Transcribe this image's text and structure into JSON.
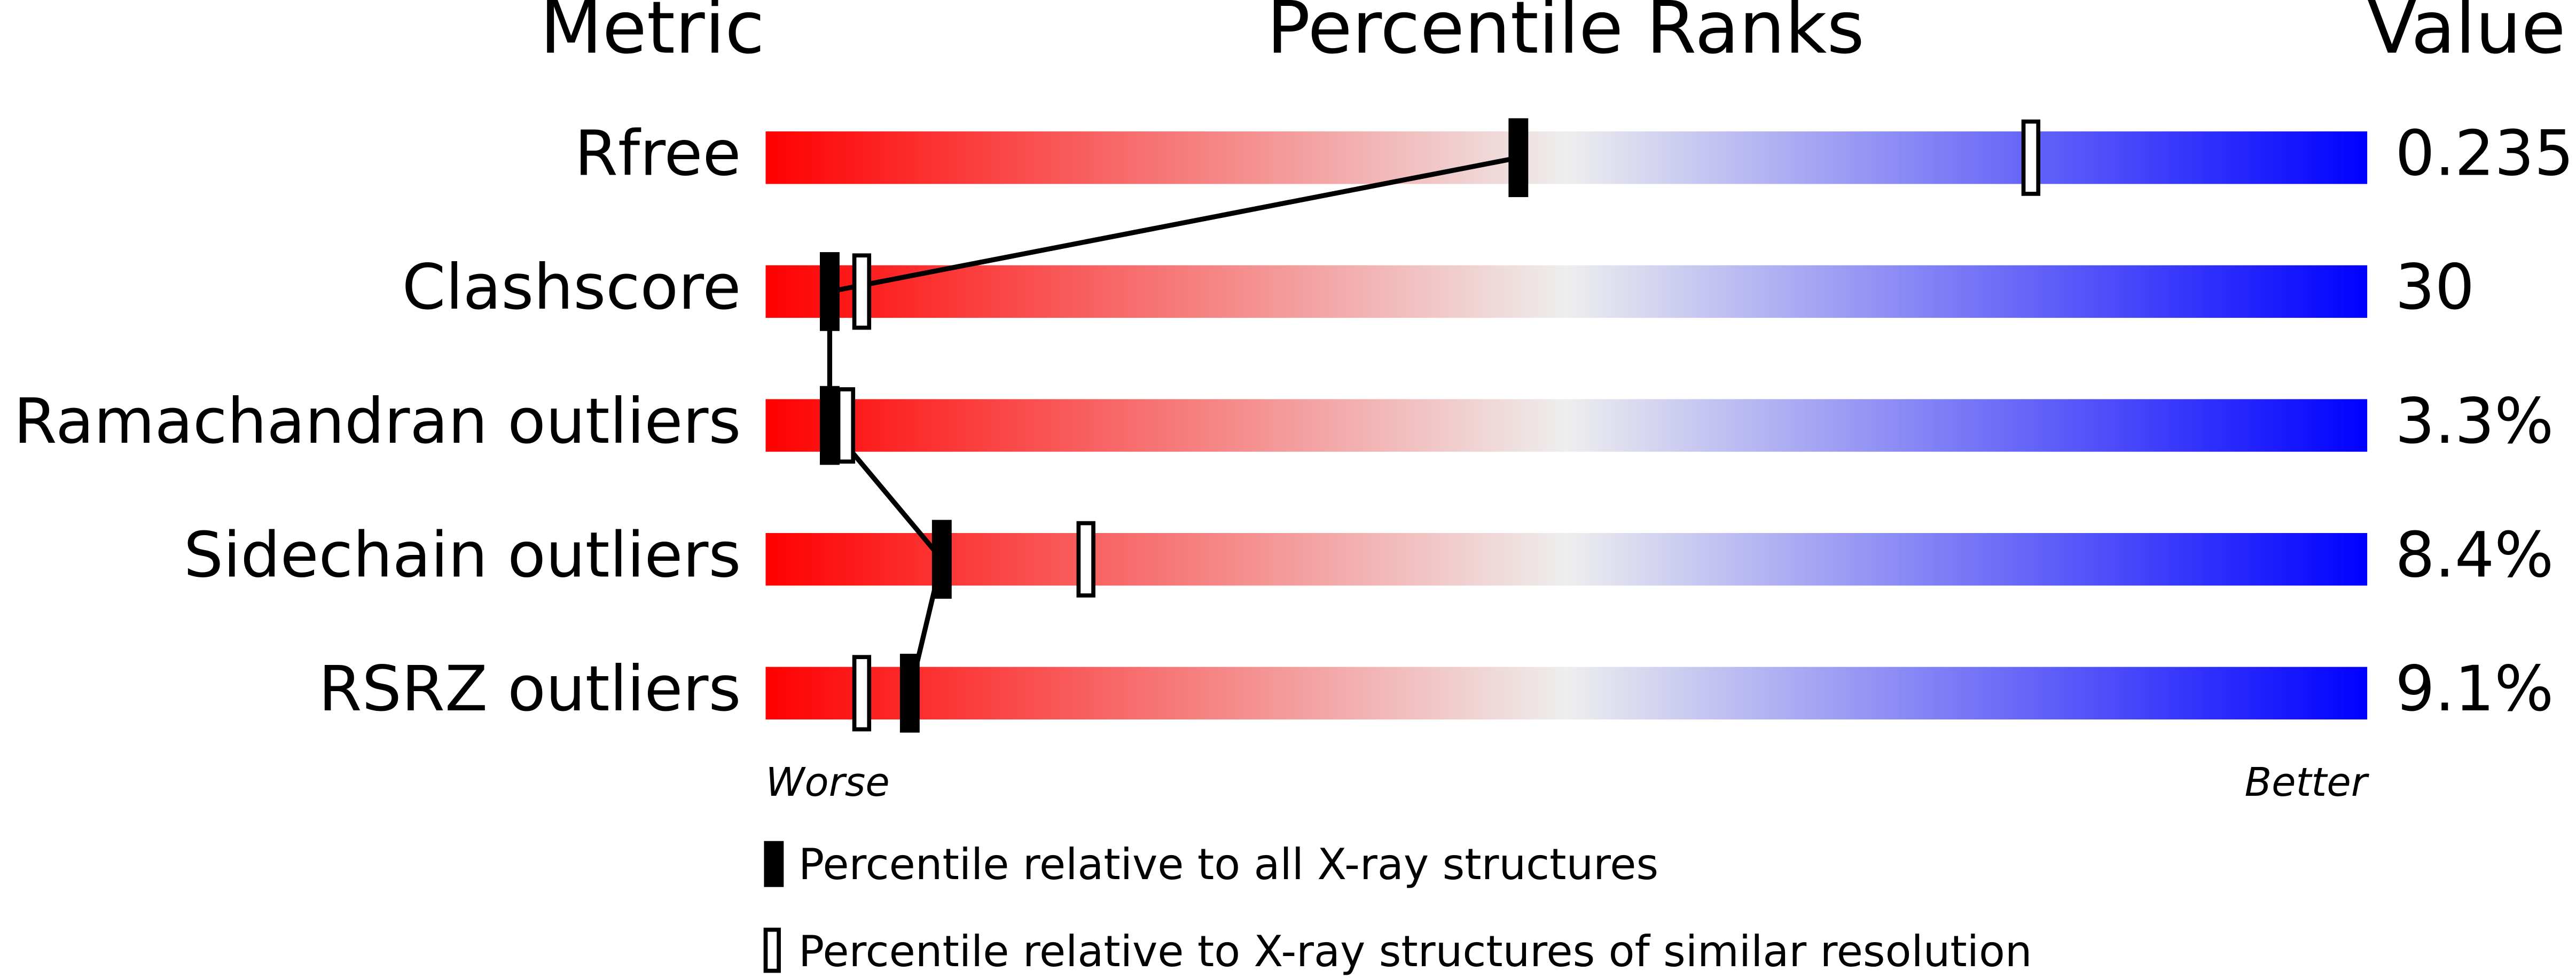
{
  "chart_data": {
    "type": "percentile",
    "headers": {
      "metric": "Metric",
      "ranks": "Percentile Ranks",
      "value": "Value"
    },
    "categories": [
      "Rfree",
      "Clashscore",
      "Ramachandran outliers",
      "Sidechain outliers",
      "RSRZ outliers"
    ],
    "metric_values": [
      "0.235",
      "30",
      "3.3%",
      "8.4%",
      "9.1%"
    ],
    "series": [
      {
        "name": "Percentile relative to all X-ray structures",
        "style": "filled",
        "color": "#000000",
        "values": [
          47,
          4,
          4,
          11,
          9
        ]
      },
      {
        "name": "Percentile relative to X-ray structures of similar resolution",
        "style": "open",
        "color": "#000000",
        "values": [
          79,
          6,
          5,
          20,
          6
        ]
      }
    ],
    "xlim": [
      0,
      100
    ],
    "axis_labels": {
      "low": "Worse",
      "high": "Better"
    },
    "gradient": [
      "#ff0000",
      "#eeeeee",
      "#0000ff"
    ]
  }
}
